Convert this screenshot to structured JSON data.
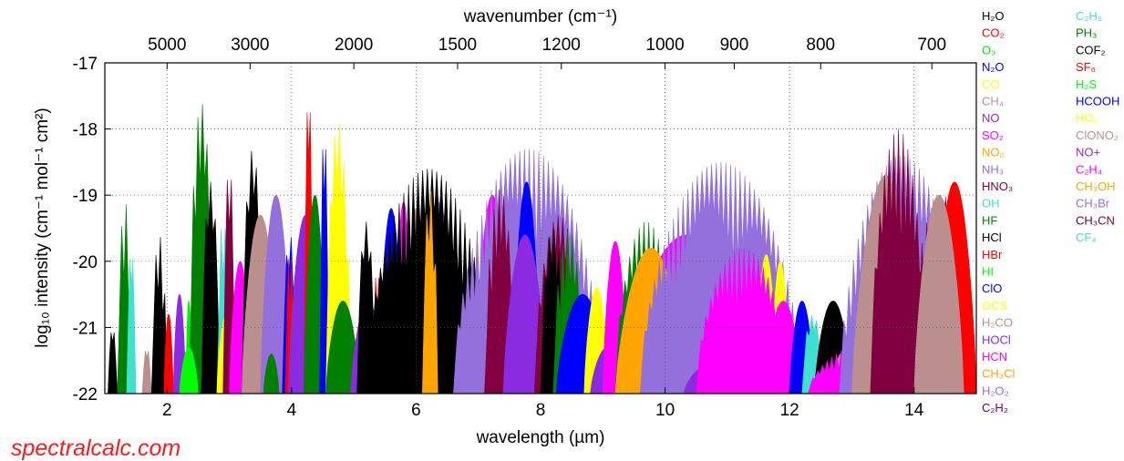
{
  "chart_data": {
    "type": "area",
    "xlabel": "wavelength (µm)",
    "top_axis_label": "wavenumber (cm⁻¹)",
    "ylabel": "log₁₀ intensity (cm⁻¹ mol⁻¹ cm²)",
    "xlim": [
      1.0,
      15.0
    ],
    "ylim": [
      -22,
      -17
    ],
    "grid": true,
    "x_ticks": [
      2,
      4,
      6,
      8,
      10,
      12,
      14
    ],
    "x_tick_labels": [
      "2",
      "4",
      "6",
      "8",
      "10",
      "12",
      "14"
    ],
    "y_ticks": [
      -22,
      -21,
      -20,
      -19,
      -18,
      -17
    ],
    "y_tick_labels": [
      "-22",
      "-21",
      "-20",
      "-19",
      "-18",
      "-17"
    ],
    "top_ticks": [
      5000,
      3000,
      2000,
      1500,
      1200,
      1000,
      900,
      800,
      700
    ],
    "top_tick_labels": [
      "5000",
      "3000",
      "2000",
      "1500",
      "1200",
      "1000",
      "900",
      "800",
      "700"
    ],
    "legend_placement": "right, two columns",
    "legend": [
      {
        "name": "H₂O",
        "color": "#000000"
      },
      {
        "name": "CO₂",
        "color": "#ff0000"
      },
      {
        "name": "O₃",
        "color": "#00ee00"
      },
      {
        "name": "N₂O",
        "color": "#0000ff"
      },
      {
        "name": "CO",
        "color": "#ffff00"
      },
      {
        "name": "CH₄",
        "color": "#bc8f8f"
      },
      {
        "name": "NO",
        "color": "#8a2be2"
      },
      {
        "name": "SO₂",
        "color": "#ff00ff"
      },
      {
        "name": "NO₂",
        "color": "#ffa500"
      },
      {
        "name": "NH₃",
        "color": "#9370db"
      },
      {
        "name": "HNO₃",
        "color": "#800040"
      },
      {
        "name": "OH",
        "color": "#40e0d0"
      },
      {
        "name": "HF",
        "color": "#008000"
      },
      {
        "name": "HCl",
        "color": "#000000"
      },
      {
        "name": "HBr",
        "color": "#ff0000"
      },
      {
        "name": "HI",
        "color": "#00ff00"
      },
      {
        "name": "ClO",
        "color": "#0000ff"
      },
      {
        "name": "OCS",
        "color": "#ffff00"
      },
      {
        "name": "H₂CO",
        "color": "#bc8f8f"
      },
      {
        "name": "HOCl",
        "color": "#8a2be2"
      },
      {
        "name": "HCN",
        "color": "#ff00ff"
      },
      {
        "name": "CH₃Cl",
        "color": "#ffa500"
      },
      {
        "name": "H₂O₂",
        "color": "#9370db"
      },
      {
        "name": "C₂H₂",
        "color": "#800040"
      },
      {
        "name": "C₂H₆",
        "color": "#40e0d0"
      },
      {
        "name": "PH₃",
        "color": "#008000"
      },
      {
        "name": "COF₂",
        "color": "#000000"
      },
      {
        "name": "SF₆",
        "color": "#ff0000"
      },
      {
        "name": "H₂S",
        "color": "#00ff00"
      },
      {
        "name": "HCOOH",
        "color": "#0000ff"
      },
      {
        "name": "HO₂",
        "color": "#ffff00"
      },
      {
        "name": "ClONO₂",
        "color": "#bc8f8f"
      },
      {
        "name": "NO+",
        "color": "#8a2be2"
      },
      {
        "name": "C₂H₄",
        "color": "#ff00ff"
      },
      {
        "name": "CH₃OH",
        "color": "#ffa500"
      },
      {
        "name": "CH₃Br",
        "color": "#9370db"
      },
      {
        "name": "CH₃CN",
        "color": "#800040"
      },
      {
        "name": "CF₄",
        "color": "#40e0d0"
      }
    ],
    "bands": [
      {
        "molecule": "H₂O",
        "color": "#000000",
        "x0": 1.05,
        "x1": 1.2,
        "peak": -21.0,
        "style": "comb"
      },
      {
        "molecule": "HF",
        "color": "#008000",
        "x0": 1.2,
        "x1": 1.45,
        "peak": -19.1,
        "style": "comb"
      },
      {
        "molecule": "OH",
        "color": "#40e0d0",
        "x0": 1.35,
        "x1": 1.5,
        "peak": -19.8,
        "style": "comb"
      },
      {
        "molecule": "CH₄",
        "color": "#bc8f8f",
        "x0": 1.6,
        "x1": 1.75,
        "peak": -21.3,
        "style": "comb"
      },
      {
        "molecule": "H₂O",
        "color": "#000000",
        "x0": 1.75,
        "x1": 2.0,
        "peak": -19.6,
        "style": "comb"
      },
      {
        "molecule": "CO₂",
        "color": "#ff0000",
        "x0": 1.95,
        "x1": 2.1,
        "peak": -20.8,
        "style": "lobe"
      },
      {
        "molecule": "NO",
        "color": "#8a2be2",
        "x0": 2.1,
        "x1": 2.3,
        "peak": -20.5,
        "style": "lobe"
      },
      {
        "molecule": "O₃",
        "color": "#00ee00",
        "x0": 2.3,
        "x1": 2.4,
        "peak": -20.6,
        "style": "lobe"
      },
      {
        "molecule": "HF",
        "color": "#008000",
        "x0": 2.35,
        "x1": 2.75,
        "peak": -17.6,
        "style": "comb"
      },
      {
        "molecule": "H₂O",
        "color": "#000000",
        "x0": 2.55,
        "x1": 2.85,
        "peak": -18.8,
        "style": "comb"
      },
      {
        "molecule": "HI",
        "color": "#00ff00",
        "x0": 2.2,
        "x1": 2.5,
        "peak": -21.3,
        "style": "lobe"
      },
      {
        "molecule": "OH",
        "color": "#40e0d0",
        "x0": 2.8,
        "x1": 3.0,
        "peak": -19.3,
        "style": "comb"
      },
      {
        "molecule": "CO",
        "color": "#ffff00",
        "x0": 2.8,
        "x1": 3.1,
        "peak": -20.8,
        "style": "lobe"
      },
      {
        "molecule": "C₂H₂",
        "color": "#800040",
        "x0": 2.9,
        "x1": 3.1,
        "peak": -18.5,
        "style": "comb"
      },
      {
        "molecule": "HCN",
        "color": "#ff00ff",
        "x0": 3.0,
        "x1": 3.35,
        "peak": -20.0,
        "style": "lobe"
      },
      {
        "molecule": "H₂O",
        "color": "#000000",
        "x0": 3.2,
        "x1": 3.55,
        "peak": -18.3,
        "style": "comb"
      },
      {
        "molecule": "CH₄",
        "color": "#bc8f8f",
        "x0": 3.2,
        "x1": 3.8,
        "peak": -19.3,
        "style": "lobe"
      },
      {
        "molecule": "NH₃",
        "color": "#9370db",
        "x0": 3.5,
        "x1": 4.0,
        "peak": -19.0,
        "style": "lobe"
      },
      {
        "molecule": "HF",
        "color": "#008000",
        "x0": 3.55,
        "x1": 3.8,
        "peak": -21.4,
        "style": "lobe"
      },
      {
        "molecule": "N₂O",
        "color": "#0000ff",
        "x0": 3.85,
        "x1": 4.1,
        "peak": -19.6,
        "style": "comb"
      },
      {
        "molecule": "HBr",
        "color": "#ff0000",
        "x0": 3.9,
        "x1": 4.05,
        "peak": -19.8,
        "style": "comb"
      },
      {
        "molecule": "NO",
        "color": "#8a2be2",
        "x0": 3.95,
        "x1": 4.5,
        "peak": -19.3,
        "style": "lobe"
      },
      {
        "molecule": "CO₂",
        "color": "#ff0000",
        "x0": 4.2,
        "x1": 4.35,
        "peak": -17.4,
        "style": "comb"
      },
      {
        "molecule": "HF",
        "color": "#008000",
        "x0": 4.2,
        "x1": 4.55,
        "peak": -19.0,
        "style": "lobe"
      },
      {
        "molecule": "N₂O",
        "color": "#0000ff",
        "x0": 4.45,
        "x1": 4.6,
        "peak": -18.0,
        "style": "comb"
      },
      {
        "molecule": "CO",
        "color": "#ffff00",
        "x0": 4.55,
        "x1": 4.95,
        "peak": -17.9,
        "style": "comb"
      },
      {
        "molecule": "HF",
        "color": "#008000",
        "x0": 4.55,
        "x1": 5.1,
        "peak": -20.6,
        "style": "lobe"
      },
      {
        "molecule": "NO",
        "color": "#8a2be2",
        "x0": 4.95,
        "x1": 5.5,
        "peak": -20.6,
        "style": "lobe"
      },
      {
        "molecule": "H₂O",
        "color": "#000000",
        "x0": 5.05,
        "x1": 5.35,
        "peak": -19.4,
        "style": "comb"
      },
      {
        "molecule": "HBr",
        "color": "#ff0000",
        "x0": 5.3,
        "x1": 5.45,
        "peak": -20.1,
        "style": "comb"
      },
      {
        "molecule": "N₂O",
        "color": "#0000ff",
        "x0": 5.4,
        "x1": 5.8,
        "peak": -19.2,
        "style": "lobe"
      },
      {
        "molecule": "HCN",
        "color": "#ff00ff",
        "x0": 5.65,
        "x1": 5.95,
        "peak": -19.1,
        "style": "lobe"
      },
      {
        "molecule": "CH₄",
        "color": "#bc8f8f",
        "x0": 5.85,
        "x1": 6.15,
        "peak": -19.2,
        "style": "lobe"
      },
      {
        "molecule": "NH₃",
        "color": "#9370db",
        "x0": 6.0,
        "x1": 6.7,
        "peak": -19.1,
        "style": "lobe"
      },
      {
        "molecule": "H₂O",
        "color": "#000000",
        "x0": 5.2,
        "x1": 7.2,
        "peak": -18.6,
        "style": "comb"
      },
      {
        "molecule": "NO₂",
        "color": "#ffa500",
        "x0": 6.1,
        "x1": 6.35,
        "peak": -18.9,
        "style": "comb"
      },
      {
        "molecule": "SO₂",
        "color": "#ff00ff",
        "x0": 6.95,
        "x1": 7.5,
        "peak": -19.0,
        "style": "lobe"
      },
      {
        "molecule": "CO",
        "color": "#ffff00",
        "x0": 7.15,
        "x1": 7.55,
        "peak": -20.3,
        "style": "lobe"
      },
      {
        "molecule": "NH₃",
        "color": "#9370db",
        "x0": 6.6,
        "x1": 9.0,
        "peak": -18.3,
        "style": "comb"
      },
      {
        "molecule": "HNO₃",
        "color": "#800040",
        "x0": 7.1,
        "x1": 7.6,
        "peak": -18.9,
        "style": "comb"
      },
      {
        "molecule": "N₂O",
        "color": "#0000ff",
        "x0": 7.55,
        "x1": 8.0,
        "peak": -18.8,
        "style": "lobe"
      },
      {
        "molecule": "OH",
        "color": "#40e0d0",
        "x0": 7.4,
        "x1": 8.15,
        "peak": -20.9,
        "style": "lobe"
      },
      {
        "molecule": "NO",
        "color": "#8a2be2",
        "x0": 7.4,
        "x1": 8.1,
        "peak": -19.6,
        "style": "lobe"
      },
      {
        "molecule": "HNO₃",
        "color": "#800040",
        "x0": 7.9,
        "x1": 8.7,
        "peak": -19.3,
        "style": "comb"
      },
      {
        "molecule": "H₂O",
        "color": "#000000",
        "x0": 8.0,
        "x1": 8.4,
        "peak": -19.5,
        "style": "comb"
      },
      {
        "molecule": "HF",
        "color": "#008000",
        "x0": 8.2,
        "x1": 8.7,
        "peak": -19.5,
        "style": "comb"
      },
      {
        "molecule": "ClO",
        "color": "#0000ff",
        "x0": 8.25,
        "x1": 9.1,
        "peak": -20.5,
        "style": "lobe"
      },
      {
        "molecule": "OCS",
        "color": "#ffff00",
        "x0": 8.7,
        "x1": 9.1,
        "peak": -20.4,
        "style": "lobe"
      },
      {
        "molecule": "HOCl",
        "color": "#8a2be2",
        "x0": 8.8,
        "x1": 9.35,
        "peak": -21.3,
        "style": "lobe"
      },
      {
        "molecule": "HCN",
        "color": "#ff00ff",
        "x0": 9.0,
        "x1": 9.4,
        "peak": -19.7,
        "style": "lobe"
      },
      {
        "molecule": "HF",
        "color": "#008000",
        "x0": 9.2,
        "x1": 10.2,
        "peak": -19.4,
        "style": "comb"
      },
      {
        "molecule": "SO₂",
        "color": "#ff00ff",
        "x0": 9.3,
        "x1": 11.4,
        "peak": -19.6,
        "style": "lobe"
      },
      {
        "molecule": "CH₃Cl",
        "color": "#ffa500",
        "x0": 9.2,
        "x1": 10.35,
        "peak": -19.8,
        "style": "lobe"
      },
      {
        "molecule": "NH₃",
        "color": "#9370db",
        "x0": 9.6,
        "x1": 12.2,
        "peak": -18.5,
        "style": "comb"
      },
      {
        "molecule": "HOCl",
        "color": "#8a2be2",
        "x0": 10.3,
        "x1": 11.0,
        "peak": -21.6,
        "style": "lobe"
      },
      {
        "molecule": "HNO₃",
        "color": "#800040",
        "x0": 10.6,
        "x1": 10.95,
        "peak": -21.3,
        "style": "lobe"
      },
      {
        "molecule": "HNO₃",
        "color": "#800040",
        "x0": 10.9,
        "x1": 11.2,
        "peak": -21.6,
        "style": "lobe"
      },
      {
        "molecule": "CO",
        "color": "#ffff00",
        "x0": 11.45,
        "x1": 11.8,
        "peak": -19.9,
        "style": "lobe"
      },
      {
        "molecule": "CO",
        "color": "#ffff00",
        "x0": 11.7,
        "x1": 12.0,
        "peak": -20.0,
        "style": "lobe"
      },
      {
        "molecule": "C₂H₄",
        "color": "#ff00ff",
        "x0": 10.5,
        "x1": 12.0,
        "peak": -19.8,
        "style": "comb"
      },
      {
        "molecule": "SO₂",
        "color": "#ff00ff",
        "x0": 11.6,
        "x1": 12.2,
        "peak": -20.6,
        "style": "lobe"
      },
      {
        "molecule": "ClO",
        "color": "#0000ff",
        "x0": 12.0,
        "x1": 12.4,
        "peak": -20.6,
        "style": "lobe"
      },
      {
        "molecule": "OH",
        "color": "#40e0d0",
        "x0": 12.2,
        "x1": 12.55,
        "peak": -20.8,
        "style": "comb"
      },
      {
        "molecule": "H₂O",
        "color": "#000000",
        "x0": 12.4,
        "x1": 13.0,
        "peak": -20.6,
        "style": "lobe"
      },
      {
        "molecule": "H₂O",
        "color": "#000000",
        "x0": 12.8,
        "x1": 13.35,
        "peak": -20.8,
        "style": "lobe"
      },
      {
        "molecule": "CH₄",
        "color": "#bc8f8f",
        "x0": 12.7,
        "x1": 12.95,
        "peak": -21.4,
        "style": "lobe"
      },
      {
        "molecule": "HCN",
        "color": "#ff00ff",
        "x0": 12.3,
        "x1": 14.5,
        "peak": -21.2,
        "style": "comb"
      },
      {
        "molecule": "NH₃",
        "color": "#9370db",
        "x0": 12.8,
        "x1": 14.8,
        "peak": -18.4,
        "style": "comb"
      },
      {
        "molecule": "CH₄",
        "color": "#bc8f8f",
        "x0": 13.0,
        "x1": 14.1,
        "peak": -18.7,
        "style": "lobe"
      },
      {
        "molecule": "C₂H₂",
        "color": "#800040",
        "x0": 13.3,
        "x1": 14.2,
        "peak": -18.0,
        "style": "comb"
      },
      {
        "molecule": "C₂H₂",
        "color": "#800040",
        "x0": 13.9,
        "x1": 15.0,
        "peak": -19.0,
        "style": "comb"
      },
      {
        "molecule": "CO₂",
        "color": "#ff0000",
        "x0": 14.3,
        "x1": 15.0,
        "peak": -18.8,
        "style": "lobe"
      },
      {
        "molecule": "ClONO₂",
        "color": "#bc8f8f",
        "x0": 14.0,
        "x1": 14.8,
        "peak": -19.0,
        "style": "lobe"
      }
    ]
  },
  "watermark": "spectralcalc.com"
}
